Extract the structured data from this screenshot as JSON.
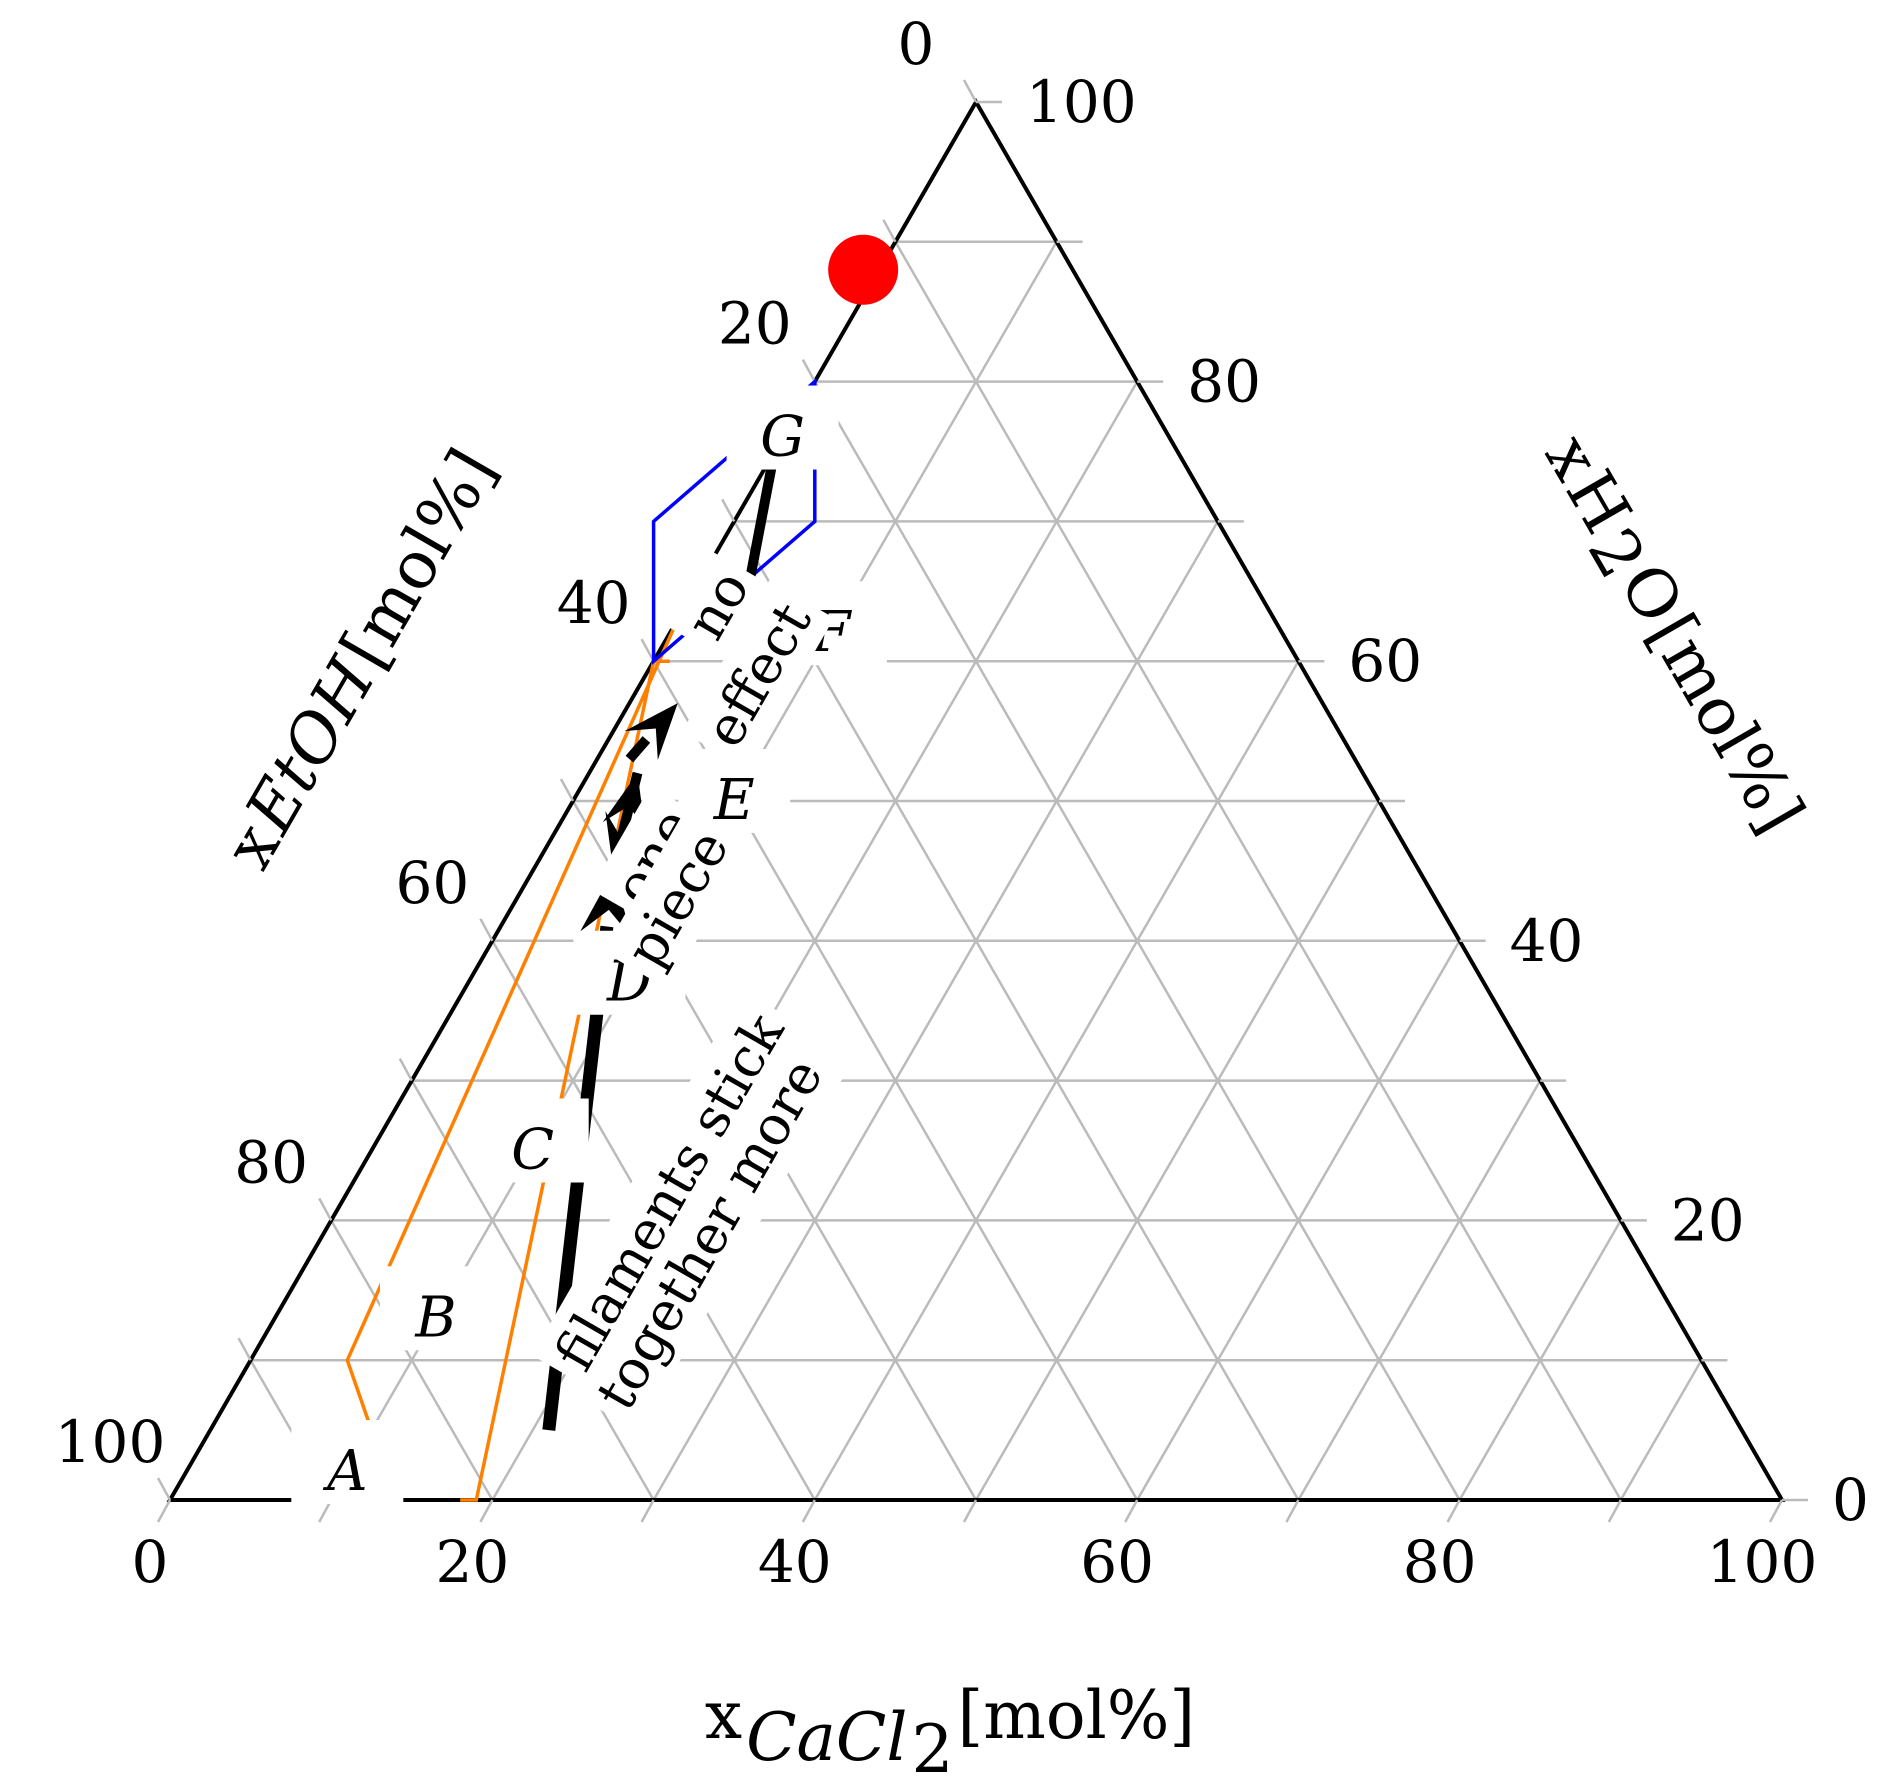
{
  "chart_data": {
    "type": "ternary",
    "axes": {
      "bottom": {
        "prefix": "x",
        "species": "CaCl",
        "subscript": "2",
        "unit": "[mol%]",
        "ticks": [
          "0",
          "20",
          "40",
          "60",
          "80",
          "100"
        ]
      },
      "left": {
        "prefix": "x",
        "species": "EtOH",
        "unit": "[mol%]",
        "ticks": [
          "0",
          "20",
          "40",
          "60",
          "80",
          "100"
        ]
      },
      "right": {
        "prefix": "x",
        "species": "H",
        "subscript": "2",
        "species_tail": "O",
        "unit": "[mol%]",
        "ticks": [
          "0",
          "20",
          "40",
          "60",
          "80",
          "100"
        ]
      }
    },
    "grid": true,
    "grid_step": 10,
    "colors": {
      "grid": "#bbbbbb",
      "frame": "#000000",
      "orange": "#ff8000",
      "blue": "#0000ff",
      "point": "#ff0000"
    },
    "regions": [
      {
        "label": "A",
        "color": "#ff8000",
        "cacl2": 10,
        "h2o": 2
      },
      {
        "label": "B",
        "color": "#ff8000",
        "cacl2": 10,
        "h2o": 13
      },
      {
        "label": "C",
        "color": "#ff8000",
        "cacl2": 10,
        "h2o": 25
      },
      {
        "label": "D",
        "color": "#ff8000",
        "cacl2": 10,
        "h2o": 37
      },
      {
        "label": "E",
        "color": "#ff8000",
        "cacl2": 10,
        "h2o": 50
      },
      {
        "label": "F",
        "color": "#ff8000",
        "cacl2": 10,
        "h2o": 62
      },
      {
        "label": "G",
        "color": "#0000ff",
        "cacl2": 0,
        "h2o": 76
      }
    ],
    "orange_band": {
      "left_edge": [
        [
          10,
          5
        ],
        [
          6,
          10
        ],
        [
          0,
          63
        ],
        [
          0,
          65
        ]
      ],
      "right_edge": [
        [
          18,
          0
        ],
        [
          19,
          0
        ],
        [
          0,
          60
        ],
        [
          1,
          60
        ]
      ]
    },
    "blue_diamond": [
      [
        0,
        80
      ],
      [
        -5,
        70
      ],
      [
        0,
        60
      ],
      [
        5,
        70
      ]
    ],
    "marker": {
      "cacl2": -1,
      "h2o": 88,
      "color": "#ff0000"
    },
    "arrows": [
      {
        "from": [
          21,
          5
        ],
        "to": [
          5,
          45
        ],
        "width": "thick"
      },
      {
        "from": [
          5,
          45
        ],
        "to": [
          3,
          52
        ],
        "width": "medium"
      },
      {
        "from": [
          3,
          52
        ],
        "to": [
          5,
          45
        ],
        "width": "medium"
      },
      {
        "from": [
          2,
          53
        ],
        "to": [
          3,
          57
        ],
        "width": "medium"
      },
      {
        "from": [
          0,
          75
        ],
        "to": [
          5,
          60
        ],
        "width": "medium"
      }
    ],
    "annotations": [
      {
        "text": "filaments stick",
        "cacl2": 20,
        "h2o": 22
      },
      {
        "text": "together more",
        "cacl2": 24,
        "h2o": 19
      },
      {
        "text": "one",
        "cacl2": 7,
        "h2o": 46
      },
      {
        "text": "piece",
        "cacl2": 10,
        "h2o": 43
      },
      {
        "text": "no",
        "cacl2": 2,
        "h2o": 64
      },
      {
        "text": "effect",
        "cacl2": 7,
        "h2o": 59
      }
    ]
  }
}
